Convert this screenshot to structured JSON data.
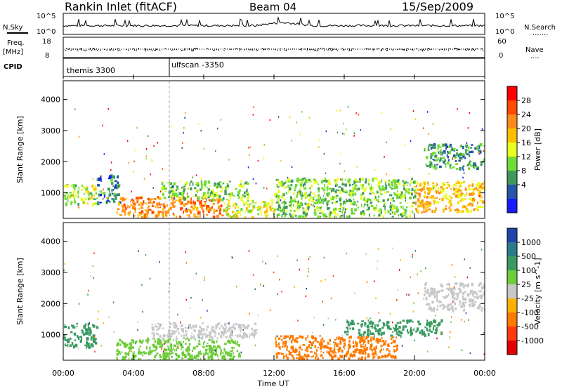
{
  "header": {
    "station": "Rankin Inlet (fitACF)",
    "beam": "Beam 04",
    "date": "15/Sep/2009"
  },
  "top_panels": {
    "nsky": {
      "left_label": "N.Sky",
      "left_ticks": [
        "10^5",
        "10^0"
      ],
      "right_ticks": [
        "10^5",
        "10^0"
      ],
      "right_label": "N.Search",
      "right_marker": "......."
    },
    "freq": {
      "left_label_1": "Freq.",
      "left_label_2": "[MHz]",
      "left_ticks": [
        "18",
        "8"
      ],
      "right_ticks": [
        "60",
        "0"
      ],
      "right_label": "Nave",
      "right_marker": "...."
    },
    "cpid": {
      "label": "CPID",
      "segments": [
        "themis 3300",
        "ulfscan -3350"
      ]
    }
  },
  "power_panel": {
    "ylabel": "Slant Range [km]",
    "colorbar_label": "Power [dB]",
    "colorbar_ticks": [
      "28",
      "24",
      "20",
      "16",
      "12",
      "8",
      "4"
    ],
    "colorbar_colors": [
      "#ff0000",
      "#ff4a00",
      "#ff8c1a",
      "#ffc000",
      "#e8ff20",
      "#6fdd35",
      "#3f9a5a",
      "#2455a8",
      "#1a1aff"
    ]
  },
  "velocity_panel": {
    "ylabel": "Slant Range [km]",
    "colorbar_label": "Velocity [m s^-1]",
    "colorbar_ticks": [
      "1000",
      "500",
      "100",
      "25",
      "-25",
      "-100",
      "-500",
      "-1000"
    ],
    "colorbar_colors": [
      "#2244aa",
      "#2b7a8a",
      "#3a9a62",
      "#6fcc3a",
      "#c8c8c8",
      "#ffb000",
      "#ff7a00",
      "#ff3a10",
      "#e00000"
    ]
  },
  "x_axis": {
    "ticks": [
      "00:00",
      "04:00",
      "08:00",
      "12:00",
      "16:00",
      "20:00",
      "00:00"
    ],
    "label": "Time UT"
  },
  "chart_data": [
    {
      "type": "heatmap",
      "title": "Rankin Inlet (fitACF)",
      "xlabel": "Time UT",
      "ylabel": "Slant Range [km]",
      "xlim": [
        0,
        24
      ],
      "ylim": [
        180,
        4600
      ],
      "y_ticks": [
        1000,
        2000,
        3000,
        4000
      ],
      "colorbar": {
        "label": "Power [dB]",
        "ticks": [
          4,
          8,
          12,
          16,
          20,
          24,
          28
        ]
      },
      "blobs": [
        {
          "t0": 0.0,
          "t1": 1.9,
          "r0": 650,
          "r1": 1300,
          "value": 16
        },
        {
          "t0": 1.9,
          "t1": 3.2,
          "r0": 700,
          "r1": 1600,
          "value": 8
        },
        {
          "t0": 3.0,
          "t1": 9.0,
          "r0": 250,
          "r1": 900,
          "value": 26
        },
        {
          "t0": 5.5,
          "t1": 10.5,
          "r0": 800,
          "r1": 1400,
          "value": 14
        },
        {
          "t0": 9.0,
          "t1": 12.0,
          "r0": 250,
          "r1": 800,
          "value": 18
        },
        {
          "t0": 12.0,
          "t1": 20.0,
          "r0": 250,
          "r1": 900,
          "value": 14
        },
        {
          "t0": 12.0,
          "t1": 20.0,
          "r0": 900,
          "r1": 1500,
          "value": 14
        },
        {
          "t0": 20.0,
          "t1": 24.0,
          "r0": 400,
          "r1": 1400,
          "value": 22
        },
        {
          "t0": 20.5,
          "t1": 24.0,
          "r0": 1800,
          "r1": 2600,
          "value": 10
        }
      ]
    },
    {
      "type": "heatmap",
      "title": "Rankin Inlet (fitACF)",
      "xlabel": "Time UT",
      "ylabel": "Slant Range [km]",
      "xlim": [
        0,
        24
      ],
      "ylim": [
        180,
        4600
      ],
      "y_ticks": [
        1000,
        2000,
        3000,
        4000
      ],
      "colorbar": {
        "label": "Velocity [m s^-1]",
        "ticks": [
          -1000,
          -500,
          -100,
          -25,
          25,
          100,
          500,
          1000
        ]
      },
      "blobs": [
        {
          "t0": 0.0,
          "t1": 1.9,
          "r0": 650,
          "r1": 1400,
          "value": 200
        },
        {
          "t0": 3.0,
          "t1": 10.0,
          "r0": 200,
          "r1": 900,
          "value": 80
        },
        {
          "t0": 5.0,
          "t1": 11.0,
          "r0": 900,
          "r1": 1400,
          "value": 0
        },
        {
          "t0": 12.0,
          "t1": 19.0,
          "r0": 250,
          "r1": 1000,
          "value": -300
        },
        {
          "t0": 16.0,
          "t1": 21.5,
          "r0": 1000,
          "r1": 1500,
          "value": 300
        },
        {
          "t0": 20.5,
          "t1": 24.0,
          "r0": 1800,
          "r1": 2700,
          "value": 0
        }
      ]
    }
  ]
}
